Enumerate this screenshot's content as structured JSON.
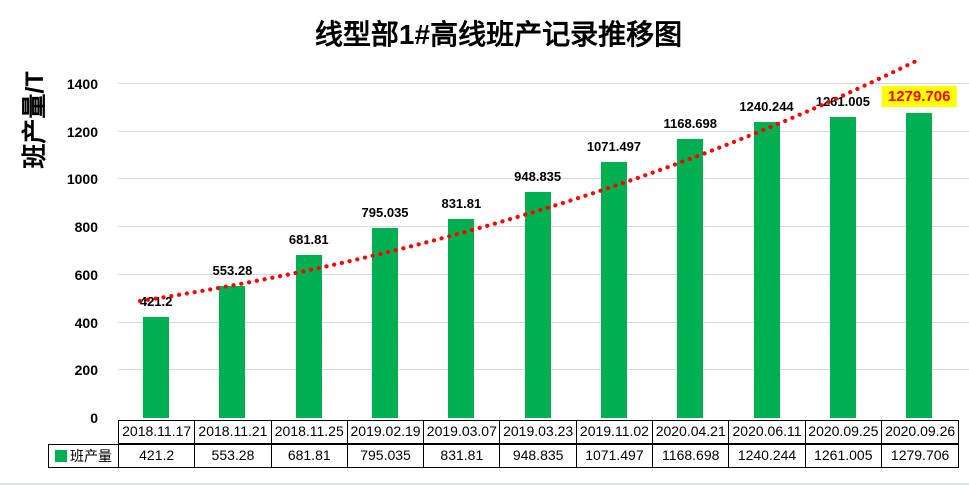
{
  "chart_data": {
    "type": "bar",
    "title": "线型部1#高线班产记录推移图",
    "ylabel": "班产量/T",
    "xlabel": "",
    "categories": [
      "2018.11.17",
      "2018.11.21",
      "2018.11.25",
      "2019.02.19",
      "2019.03.07",
      "2019.03.23",
      "2019.11.02",
      "2020.04.21",
      "2020.06.11",
      "2020.09.25",
      "2020.09.26"
    ],
    "series": [
      {
        "name": "班产量",
        "values": [
          421.2,
          553.28,
          681.81,
          795.035,
          831.81,
          948.835,
          1071.497,
          1168.698,
          1240.244,
          1261.005,
          1279.706
        ]
      }
    ],
    "data_labels": [
      "421.2",
      "553.28",
      "681.81",
      "795.035",
      "831.81",
      "948.835",
      "1071.497",
      "1168.698",
      "1240.244",
      "1261.005",
      "1279.706"
    ],
    "yticks": [
      0,
      200,
      400,
      600,
      800,
      1000,
      1200,
      1400
    ],
    "ylim": [
      0,
      1500
    ],
    "grid": true,
    "legend_position": "data-table-left",
    "highlighted_label": {
      "index": 10,
      "text": "1279.706",
      "text_color": "#FF0000",
      "background": "#FFFF00"
    },
    "trendline": {
      "shape": "exponential",
      "style": "dotted",
      "color": "#FF0000"
    },
    "colors": {
      "bar": "#00B050",
      "grid": "#D9D9D9",
      "label_text": "#000000",
      "table_border": "#000000",
      "background": "#FFFFFF"
    }
  }
}
